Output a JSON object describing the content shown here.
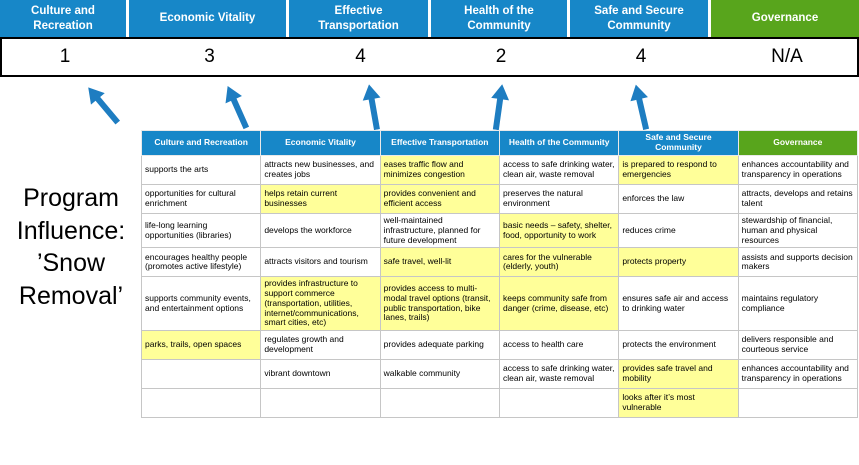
{
  "program_label": "Program Influence: ’Snow Removal’",
  "colors": {
    "header_blue": "#1787C8",
    "header_green": "#58A51C",
    "highlight_yellow": "#FFFF99",
    "arrow_blue": "#1E7DC1"
  },
  "summary": {
    "columns": [
      {
        "label": "Culture and Recreation",
        "score": "1",
        "theme": "blue"
      },
      {
        "label": "Economic Vitality",
        "score": "3",
        "theme": "blue"
      },
      {
        "label": "Effective Transportation",
        "score": "4",
        "theme": "blue"
      },
      {
        "label": "Health of the Community",
        "score": "2",
        "theme": "blue"
      },
      {
        "label": "Safe and Secure Community",
        "score": "4",
        "theme": "blue"
      },
      {
        "label": "Governance",
        "score": "N/A",
        "theme": "green"
      }
    ]
  },
  "matrix": {
    "headers": [
      {
        "label": "Culture and Recreation",
        "theme": "blue"
      },
      {
        "label": "Economic Vitality",
        "theme": "blue"
      },
      {
        "label": "Effective Transportation",
        "theme": "blue"
      },
      {
        "label": "Health of the Community",
        "theme": "blue"
      },
      {
        "label": "Safe and Secure Community",
        "theme": "blue"
      },
      {
        "label": "Governance",
        "theme": "green"
      }
    ],
    "rows": [
      [
        {
          "text": "supports the arts",
          "highlight": false
        },
        {
          "text": "attracts new businesses, and creates jobs",
          "highlight": false
        },
        {
          "text": "eases traffic flow and minimizes congestion",
          "highlight": true
        },
        {
          "text": "access to safe drinking water, clean air, waste removal",
          "highlight": false
        },
        {
          "text": "is prepared to respond to emergencies",
          "highlight": true
        },
        {
          "text": "enhances accountability and transparency in operations",
          "highlight": false
        }
      ],
      [
        {
          "text": "opportunities for cultural enrichment",
          "highlight": false
        },
        {
          "text": "helps retain current businesses",
          "highlight": true
        },
        {
          "text": "provides convenient and efficient access",
          "highlight": true
        },
        {
          "text": "preserves the natural environment",
          "highlight": false
        },
        {
          "text": "enforces the law",
          "highlight": false
        },
        {
          "text": "attracts, develops and retains talent",
          "highlight": false
        }
      ],
      [
        {
          "text": "life-long learning opportunities (libraries)",
          "highlight": false
        },
        {
          "text": "develops the workforce",
          "highlight": false
        },
        {
          "text": "well-maintained infrastructure, planned for future development",
          "highlight": false
        },
        {
          "text": "basic needs – safety, shelter, food, opportunity to work",
          "highlight": true
        },
        {
          "text": "reduces crime",
          "highlight": false
        },
        {
          "text": "stewardship of financial, human and physical resources",
          "highlight": false
        }
      ],
      [
        {
          "text": "encourages healthy people (promotes active lifestyle)",
          "highlight": false
        },
        {
          "text": "attracts visitors and tourism",
          "highlight": false
        },
        {
          "text": "safe travel, well-lit",
          "highlight": true
        },
        {
          "text": "cares for the vulnerable (elderly, youth)",
          "highlight": true
        },
        {
          "text": "protects property",
          "highlight": true
        },
        {
          "text": "assists and supports decision makers",
          "highlight": false
        }
      ],
      [
        {
          "text": "supports community events, and entertainment options",
          "highlight": false
        },
        {
          "text": "provides infrastructure to support commerce (transportation, utilities, internet/communications, smart cities, etc)",
          "highlight": true
        },
        {
          "text": "provides access to multi-modal travel options (transit, public transportation, bike lanes, trails)",
          "highlight": true
        },
        {
          "text": "keeps community safe from danger (crime, disease, etc)",
          "highlight": true
        },
        {
          "text": "ensures safe air and access to drinking water",
          "highlight": false
        },
        {
          "text": "maintains regulatory compliance",
          "highlight": false
        }
      ],
      [
        {
          "text": "parks, trails, open spaces",
          "highlight": true
        },
        {
          "text": "regulates growth and development",
          "highlight": false
        },
        {
          "text": "provides adequate parking",
          "highlight": false
        },
        {
          "text": "access to health care",
          "highlight": false
        },
        {
          "text": "protects the environment",
          "highlight": false
        },
        {
          "text": "delivers responsible and courteous service",
          "highlight": false
        }
      ],
      [
        {
          "text": "",
          "highlight": false
        },
        {
          "text": "vibrant downtown",
          "highlight": false
        },
        {
          "text": "walkable community",
          "highlight": false
        },
        {
          "text": "access to safe drinking water, clean air, waste removal",
          "highlight": false
        },
        {
          "text": "provides safe travel and mobility",
          "highlight": true
        },
        {
          "text": "enhances accountability and transparency in operations",
          "highlight": false
        }
      ],
      [
        {
          "text": "",
          "highlight": false
        },
        {
          "text": "",
          "highlight": false
        },
        {
          "text": "",
          "highlight": false
        },
        {
          "text": "",
          "highlight": false
        },
        {
          "text": "looks after it’s most vulnerable",
          "highlight": true
        },
        {
          "text": "",
          "highlight": false
        }
      ]
    ]
  }
}
